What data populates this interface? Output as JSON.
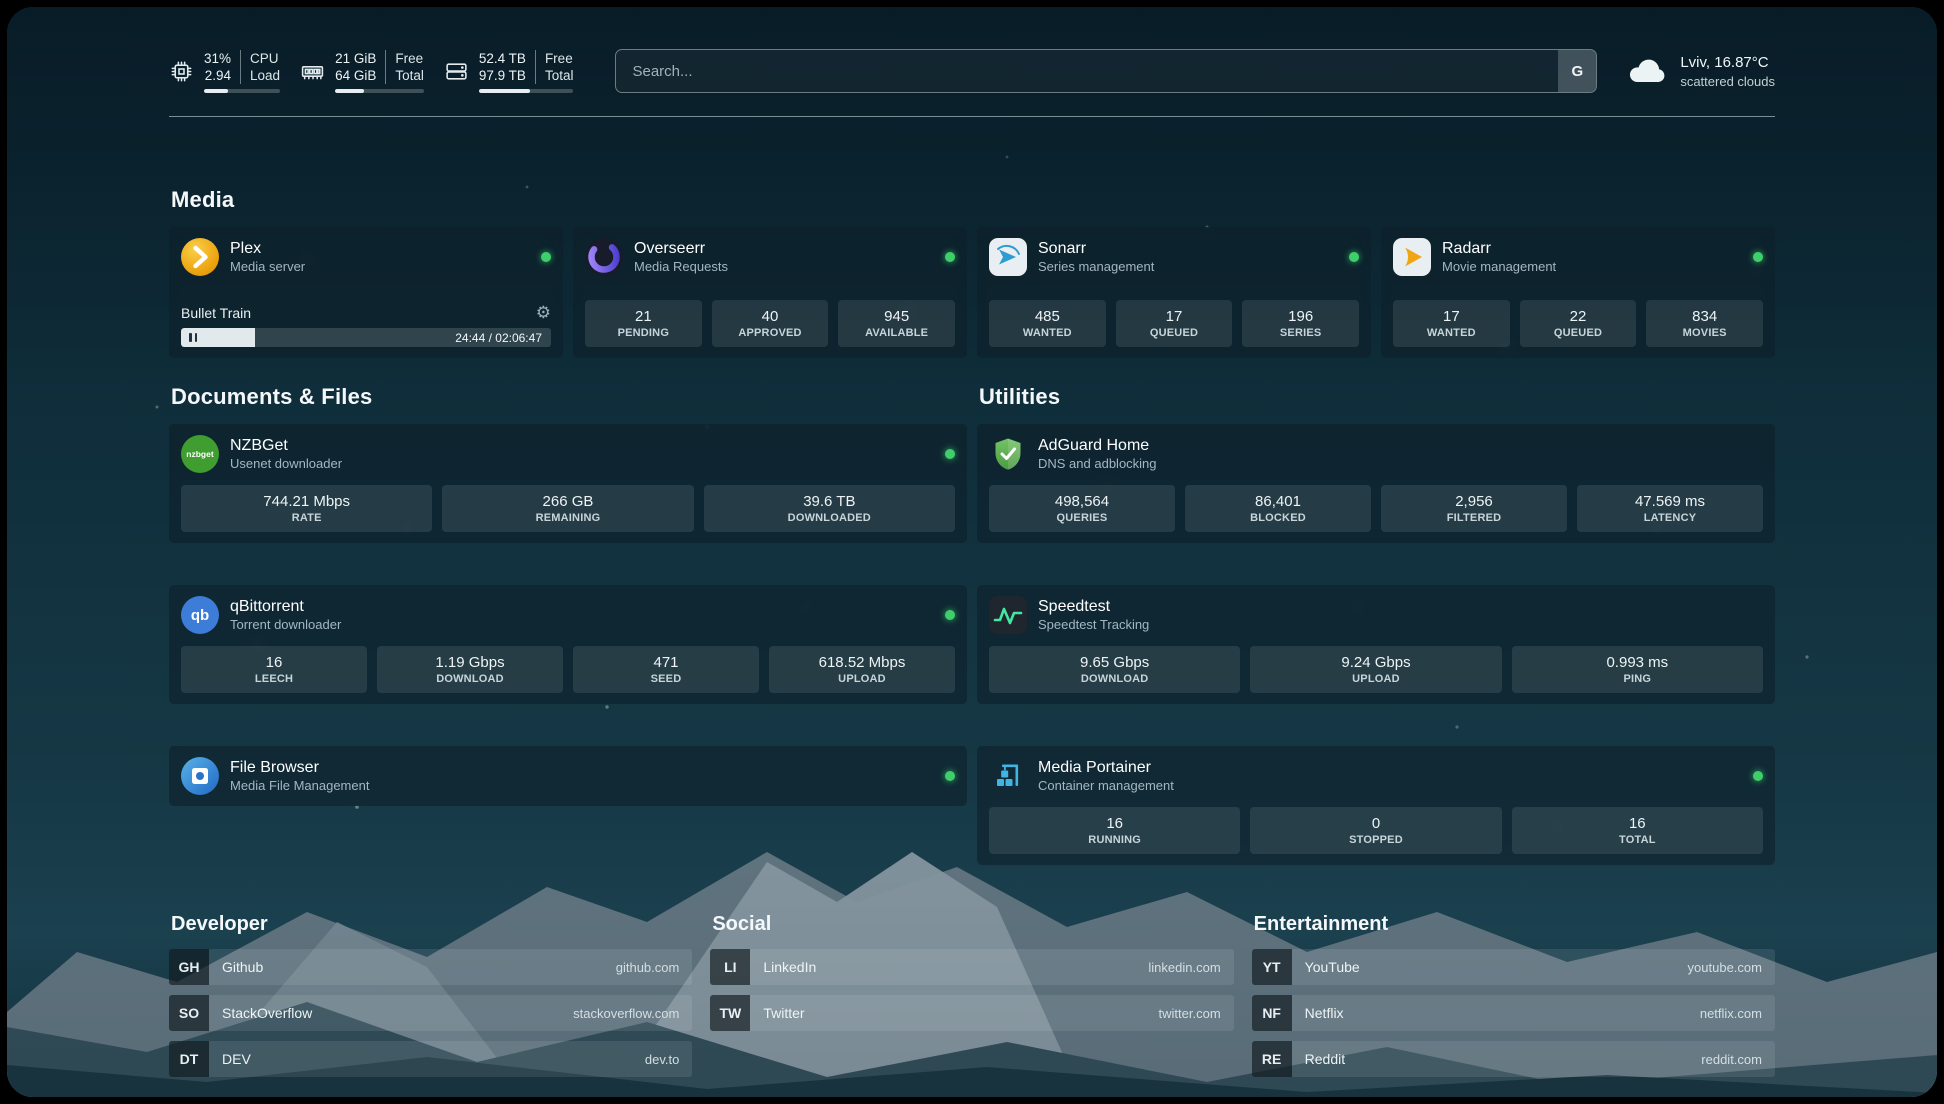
{
  "topbar": {
    "resources": [
      {
        "icon": "cpu-icon",
        "value_top": "31%",
        "value_bottom": "2.94",
        "label_top": "CPU",
        "label_bottom": "Load",
        "progress_percent": 31
      },
      {
        "icon": "memory-icon",
        "value_top": "21 GiB",
        "value_bottom": "64 GiB",
        "label_top": "Free",
        "label_bottom": "Total",
        "progress_percent": 33
      },
      {
        "icon": "disk-icon",
        "value_top": "52.4 TB",
        "value_bottom": "97.9 TB",
        "label_top": "Free",
        "label_bottom": "Total",
        "progress_percent": 54
      }
    ],
    "search": {
      "placeholder": "Search...",
      "engine_badge": "G"
    },
    "weather": {
      "icon": "cloud-icon",
      "location": "Lviv, 16.87°C",
      "condition": "scattered clouds"
    }
  },
  "media": {
    "title": "Media",
    "cards": [
      {
        "icon": "plex-icon",
        "name": "Plex",
        "subtitle": "Media server",
        "online": true,
        "now_playing": {
          "title": "Bullet Train",
          "time": "24:44 / 02:06:47",
          "progress_percent": 20
        }
      },
      {
        "icon": "overseerr-icon",
        "name": "Overseerr",
        "subtitle": "Media Requests",
        "online": true,
        "stats": [
          {
            "value": "21",
            "label": "PENDING"
          },
          {
            "value": "40",
            "label": "APPROVED"
          },
          {
            "value": "945",
            "label": "AVAILABLE"
          }
        ]
      },
      {
        "icon": "sonarr-icon",
        "name": "Sonarr",
        "subtitle": "Series management",
        "online": true,
        "stats": [
          {
            "value": "485",
            "label": "WANTED"
          },
          {
            "value": "17",
            "label": "QUEUED"
          },
          {
            "value": "196",
            "label": "SERIES"
          }
        ]
      },
      {
        "icon": "radarr-icon",
        "name": "Radarr",
        "subtitle": "Movie management",
        "online": true,
        "stats": [
          {
            "value": "17",
            "label": "WANTED"
          },
          {
            "value": "22",
            "label": "QUEUED"
          },
          {
            "value": "834",
            "label": "MOVIES"
          }
        ]
      }
    ]
  },
  "documents": {
    "title": "Documents & Files",
    "cards": [
      {
        "icon": "nzbget-icon",
        "name": "NZBGet",
        "subtitle": "Usenet downloader",
        "online": true,
        "stats": [
          {
            "value": "744.21 Mbps",
            "label": "RATE"
          },
          {
            "value": "266 GB",
            "label": "REMAINING"
          },
          {
            "value": "39.6 TB",
            "label": "DOWNLOADED"
          }
        ]
      },
      {
        "icon": "qbittorrent-icon",
        "name": "qBittorrent",
        "subtitle": "Torrent downloader",
        "online": true,
        "stats": [
          {
            "value": "16",
            "label": "LEECH"
          },
          {
            "value": "1.19 Gbps",
            "label": "DOWNLOAD"
          },
          {
            "value": "471",
            "label": "SEED"
          },
          {
            "value": "618.52 Mbps",
            "label": "UPLOAD"
          }
        ]
      },
      {
        "icon": "filebrowser-icon",
        "name": "File Browser",
        "subtitle": "Media File Management",
        "online": true
      }
    ]
  },
  "utilities": {
    "title": "Utilities",
    "cards": [
      {
        "icon": "adguard-icon",
        "name": "AdGuard Home",
        "subtitle": "DNS and adblocking",
        "online": false,
        "stats": [
          {
            "value": "498,564",
            "label": "QUERIES"
          },
          {
            "value": "86,401",
            "label": "BLOCKED"
          },
          {
            "value": "2,956",
            "label": "FILTERED"
          },
          {
            "value": "47.569 ms",
            "label": "LATENCY"
          }
        ]
      },
      {
        "icon": "speedtest-icon",
        "name": "Speedtest",
        "subtitle": "Speedtest Tracking",
        "online": false,
        "stats": [
          {
            "value": "9.65 Gbps",
            "label": "DOWNLOAD"
          },
          {
            "value": "9.24 Gbps",
            "label": "UPLOAD"
          },
          {
            "value": "0.993 ms",
            "label": "PING"
          }
        ]
      },
      {
        "icon": "portainer-icon",
        "name": "Media Portainer",
        "subtitle": "Container management",
        "online": true,
        "stats": [
          {
            "value": "16",
            "label": "RUNNING"
          },
          {
            "value": "0",
            "label": "STOPPED"
          },
          {
            "value": "16",
            "label": "TOTAL"
          }
        ]
      }
    ]
  },
  "bookmarks": {
    "groups": [
      {
        "title": "Developer",
        "links": [
          {
            "abbr": "GH",
            "name": "Github",
            "url": "github.com"
          },
          {
            "abbr": "SO",
            "name": "StackOverflow",
            "url": "stackoverflow.com"
          },
          {
            "abbr": "DT",
            "name": "DEV",
            "url": "dev.to"
          }
        ]
      },
      {
        "title": "Social",
        "links": [
          {
            "abbr": "LI",
            "name": "LinkedIn",
            "url": "linkedin.com"
          },
          {
            "abbr": "TW",
            "name": "Twitter",
            "url": "twitter.com"
          }
        ]
      },
      {
        "title": "Entertainment",
        "links": [
          {
            "abbr": "YT",
            "name": "YouTube",
            "url": "youtube.com"
          },
          {
            "abbr": "NF",
            "name": "Netflix",
            "url": "netflix.com"
          },
          {
            "abbr": "RE",
            "name": "Reddit",
            "url": "reddit.com"
          }
        ]
      }
    ]
  },
  "colors": {
    "status_online": "#3ecf6a",
    "plex_accent": "#eda511"
  }
}
